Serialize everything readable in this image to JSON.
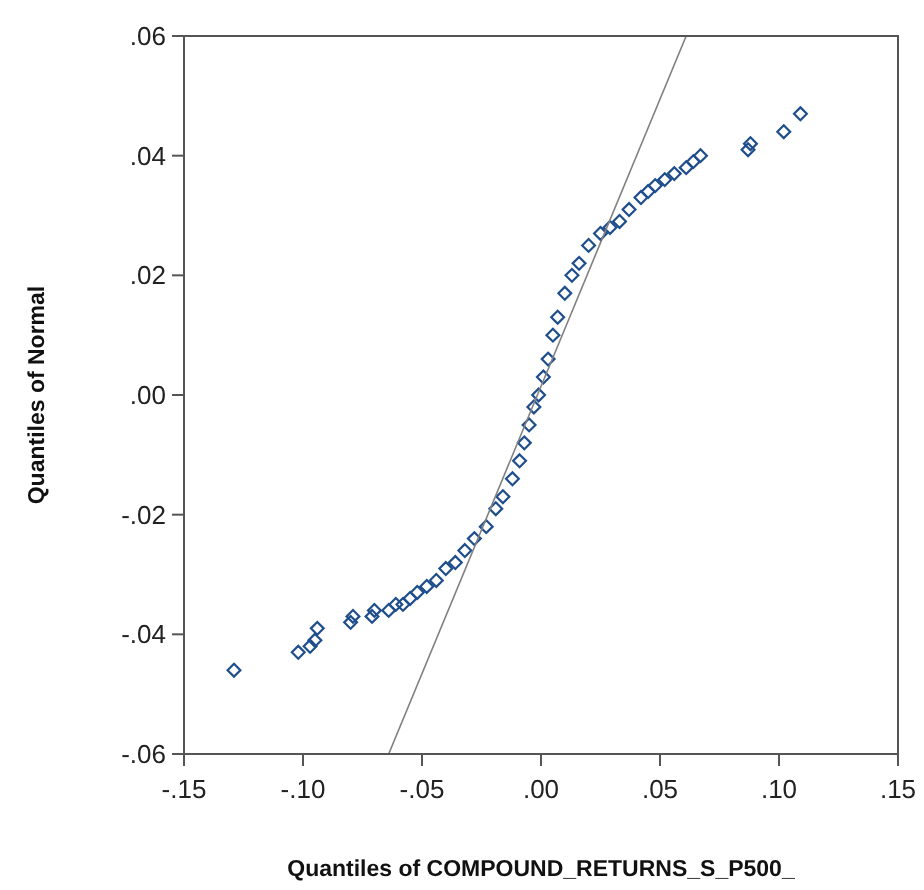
{
  "chart_data": {
    "type": "scatter",
    "xlabel": "Quantiles of COMPOUND_RETURNS_S_P500_",
    "ylabel": "Quantiles of Normal",
    "xlim": [
      -0.15,
      0.15
    ],
    "ylim": [
      -0.06,
      0.06
    ],
    "xticks": [
      {
        "value": -0.15,
        "label": "-.15"
      },
      {
        "value": -0.1,
        "label": "-.10"
      },
      {
        "value": -0.05,
        "label": "-.05"
      },
      {
        "value": 0,
        "label": ".00"
      },
      {
        "value": 0.05,
        "label": ".05"
      },
      {
        "value": 0.1,
        "label": ".10"
      },
      {
        "value": 0.15,
        "label": ".15"
      }
    ],
    "yticks": [
      {
        "value": -0.06,
        "label": "-.06"
      },
      {
        "value": -0.04,
        "label": "-.04"
      },
      {
        "value": -0.02,
        "label": "-.02"
      },
      {
        "value": 0,
        "label": ".00"
      },
      {
        "value": 0.02,
        "label": ".02"
      },
      {
        "value": 0.04,
        "label": ".04"
      },
      {
        "value": 0.06,
        "label": ".06"
      }
    ],
    "grid": false,
    "series": [
      {
        "color": "#1f4e8c",
        "marker": "diamond",
        "x": [
          -0.129,
          -0.102,
          -0.097,
          -0.095,
          -0.094,
          -0.08,
          -0.079,
          -0.071,
          -0.07,
          -0.064,
          -0.061,
          -0.058,
          -0.055,
          -0.052,
          -0.048,
          -0.044,
          -0.04,
          -0.036,
          -0.032,
          -0.028,
          -0.023,
          -0.019,
          -0.016,
          -0.012,
          -0.009,
          -0.007,
          -0.005,
          -0.003,
          -0.001,
          0.001,
          0.003,
          0.005,
          0.007,
          0.01,
          0.013,
          0.016,
          0.02,
          0.025,
          0.029,
          0.033,
          0.037,
          0.042,
          0.045,
          0.048,
          0.052,
          0.056,
          0.061,
          0.064,
          0.067,
          0.087,
          0.088,
          0.102,
          0.109
        ],
        "values": [
          -0.046,
          -0.043,
          -0.042,
          -0.041,
          -0.039,
          -0.038,
          -0.037,
          -0.037,
          -0.036,
          -0.036,
          -0.035,
          -0.035,
          -0.034,
          -0.033,
          -0.032,
          -0.031,
          -0.029,
          -0.028,
          -0.026,
          -0.024,
          -0.022,
          -0.019,
          -0.017,
          -0.014,
          -0.011,
          -0.008,
          -0.005,
          -0.002,
          0.0,
          0.003,
          0.006,
          0.01,
          0.013,
          0.017,
          0.02,
          0.022,
          0.025,
          0.027,
          0.028,
          0.029,
          0.031,
          0.033,
          0.034,
          0.035,
          0.036,
          0.037,
          0.038,
          0.039,
          0.04,
          0.041,
          0.042,
          0.044,
          0.047
        ]
      },
      {
        "type": "line",
        "color": "#808080",
        "x": [
          -0.064,
          0.061
        ],
        "values": [
          -0.06,
          0.06
        ],
        "marker": "none",
        "line_style": "solid"
      }
    ]
  }
}
